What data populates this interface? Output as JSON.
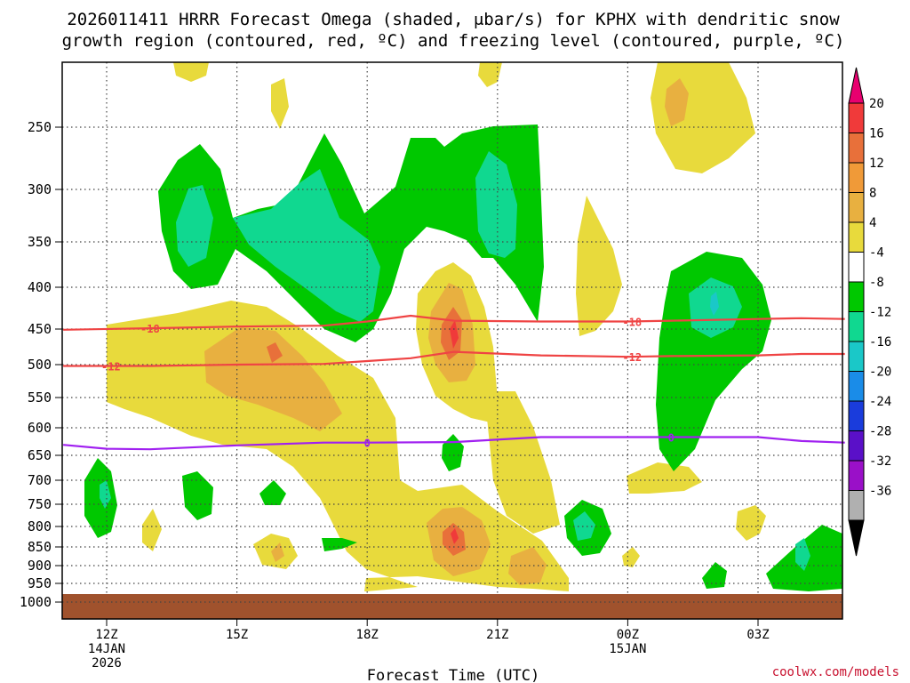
{
  "chart_data": {
    "type": "contour",
    "title_line1": "2026011411 HRRR Forecast Omega (shaded, μbar/s) for KPHX with dendritic snow",
    "title_line2": "growth region (contoured, red, ºC) and freezing level (contoured, purple, ºC)",
    "xlabel": "Forecast Time (UTC)",
    "credit": "coolwx.com/models",
    "y_ticks": [
      "250",
      "300",
      "350",
      "400",
      "450",
      "500",
      "550",
      "600",
      "650",
      "700",
      "750",
      "800",
      "850",
      "900",
      "950",
      "1000"
    ],
    "y_values": [
      250,
      300,
      350,
      400,
      450,
      500,
      550,
      600,
      650,
      700,
      750,
      800,
      850,
      900,
      950,
      1000
    ],
    "x_ticks": [
      {
        "hour": 0,
        "lines": [
          "12Z",
          "14JAN",
          "2026"
        ]
      },
      {
        "hour": 3,
        "lines": [
          "15Z"
        ]
      },
      {
        "hour": 6,
        "lines": [
          "18Z"
        ]
      },
      {
        "hour": 9,
        "lines": [
          "21Z"
        ]
      },
      {
        "hour": 12,
        "lines": [
          "00Z",
          "15JAN"
        ]
      },
      {
        "hour": 15,
        "lines": [
          "03Z"
        ]
      }
    ],
    "colorbar": {
      "labels": [
        "20",
        "16",
        "12",
        "8",
        "4",
        "-4",
        "-8",
        "-12",
        "-16",
        "-20",
        "-24",
        "-28",
        "-32",
        "-36"
      ],
      "colors": [
        "#e8006f",
        "#f03a3a",
        "#e8703a",
        "#f09a38",
        "#e8b040",
        "#e8da3c",
        "#ffffff",
        "#00c800",
        "#10d890",
        "#1ac8c8",
        "#1a8ce8",
        "#1a3cdc",
        "#5a10c8",
        "#9a10c8",
        "#b0b0b0",
        "#000000"
      ]
    },
    "isotherms": [
      {
        "name": "-18",
        "color": "#ef4444",
        "pressure": [
          451,
          449,
          447,
          446,
          441,
          434,
          440,
          441,
          441,
          440,
          438,
          437,
          438
        ],
        "hours": [
          -1,
          1,
          3,
          5,
          6,
          7,
          8,
          10,
          12,
          13,
          15,
          16,
          17
        ]
      },
      {
        "name": "-12",
        "color": "#ef4444",
        "pressure": [
          502,
          502,
          500,
          499,
          495,
          491,
          482,
          487,
          489,
          488,
          487,
          485,
          485
        ],
        "hours": [
          -1,
          1,
          3,
          5,
          6,
          7,
          8,
          10,
          12,
          13,
          15,
          16,
          17
        ]
      },
      {
        "name": "0",
        "color": "#a020f0",
        "pressure": [
          631,
          638,
          639,
          632,
          627,
          627,
          626,
          617,
          617,
          617,
          617,
          624,
          627
        ],
        "hours": [
          -1,
          0,
          1,
          3,
          5,
          6,
          8,
          10,
          12,
          13,
          15,
          16,
          17
        ]
      }
    ],
    "contour_labels": [
      {
        "text": "-18",
        "hour": 1.0,
        "pressure": 449,
        "color": "#ef4444"
      },
      {
        "text": "-18",
        "hour": 12.1,
        "pressure": 441,
        "color": "#ef4444"
      },
      {
        "text": "-12",
        "hour": 0.1,
        "pressure": 502,
        "color": "#ef4444"
      },
      {
        "text": "-12",
        "hour": 12.1,
        "pressure": 489,
        "color": "#ef4444"
      },
      {
        "text": "0",
        "hour": 6.0,
        "pressure": 627,
        "color": "#a020f0"
      },
      {
        "text": "0",
        "hour": 13.0,
        "pressure": 617,
        "color": "#a020f0"
      }
    ]
  }
}
